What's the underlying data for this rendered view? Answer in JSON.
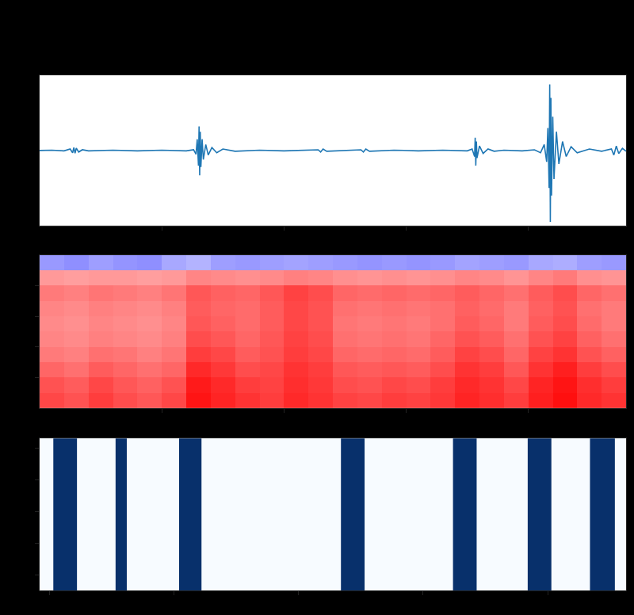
{
  "chart_data": [
    {
      "type": "line",
      "x": [
        0,
        0.1,
        0.2,
        0.25,
        0.27,
        0.28,
        0.29,
        0.3,
        0.32,
        0.35,
        0.4,
        0.6,
        0.8,
        1.0,
        1.2,
        1.26,
        1.28,
        1.29,
        1.3,
        1.305,
        1.31,
        1.315,
        1.32,
        1.33,
        1.34,
        1.36,
        1.38,
        1.41,
        1.45,
        1.5,
        1.6,
        1.8,
        2.0,
        2.2,
        2.28,
        2.3,
        2.32,
        2.35,
        2.5,
        2.63,
        2.65,
        2.67,
        2.7,
        2.9,
        3.1,
        3.3,
        3.5,
        3.54,
        3.56,
        3.565,
        3.57,
        3.575,
        3.58,
        3.6,
        3.63,
        3.67,
        3.72,
        3.8,
        3.95,
        4.05,
        4.1,
        4.13,
        4.15,
        4.16,
        4.17,
        4.175,
        4.18,
        4.185,
        4.19,
        4.2,
        4.21,
        4.23,
        4.25,
        4.28,
        4.31,
        4.35,
        4.4,
        4.5,
        4.6,
        4.68,
        4.7,
        4.72,
        4.74,
        4.77,
        4.8
      ],
      "values": [
        0,
        0.005,
        -0.005,
        0.02,
        -0.03,
        0.04,
        -0.035,
        0.03,
        -0.02,
        0.01,
        -0.005,
        0.005,
        -0.005,
        0.005,
        -0.005,
        0.01,
        -0.05,
        0.15,
        -0.2,
        0.32,
        -0.33,
        0.25,
        -0.22,
        0.15,
        -0.12,
        0.08,
        -0.06,
        0.04,
        -0.03,
        0.02,
        -0.01,
        0.005,
        -0.005,
        0.005,
        0.01,
        -0.02,
        0.02,
        -0.01,
        0.005,
        0.01,
        -0.02,
        0.02,
        -0.01,
        0.005,
        -0.005,
        0.005,
        -0.005,
        0.02,
        -0.08,
        0.17,
        -0.2,
        0.12,
        -0.1,
        0.06,
        -0.04,
        0.02,
        -0.01,
        0.005,
        -0.005,
        0.01,
        -0.03,
        0.08,
        -0.15,
        0.3,
        -0.5,
        0.88,
        -0.95,
        0.7,
        -0.6,
        0.45,
        -0.38,
        0.25,
        -0.18,
        0.12,
        -0.08,
        0.05,
        -0.03,
        0.02,
        -0.01,
        0.02,
        -0.06,
        0.06,
        -0.04,
        0.03,
        -0.01
      ],
      "color": "#1f77b4",
      "xlim": [
        0,
        4.8
      ],
      "xticks": [
        1,
        2,
        3,
        4
      ],
      "ylim": [
        -1,
        1
      ],
      "yticks": [],
      "tick_labels": false
    },
    {
      "type": "heatmap",
      "x": [
        0.1,
        0.3,
        0.5,
        0.7,
        0.9,
        1.1,
        1.3,
        1.5,
        1.7,
        1.9,
        2.1,
        2.3,
        2.5,
        2.7,
        2.9,
        3.1,
        3.3,
        3.5,
        3.7,
        3.9,
        4.1,
        4.3,
        4.5,
        4.7
      ],
      "y": [
        0.25,
        0.75,
        1.25,
        1.75,
        2.25,
        2.75,
        3.25,
        3.75,
        4.25,
        4.75
      ],
      "cells": [
        [
          0.86,
          0.84,
          0.88,
          0.85,
          0.83,
          0.86,
          0.96,
          0.93,
          0.9,
          0.88,
          0.92,
          0.9,
          0.87,
          0.86,
          0.88,
          0.87,
          0.89,
          0.93,
          0.91,
          0.88,
          0.94,
          0.97,
          0.92,
          0.9
        ],
        [
          0.84,
          0.82,
          0.86,
          0.83,
          0.81,
          0.84,
          0.95,
          0.92,
          0.88,
          0.87,
          0.91,
          0.89,
          0.85,
          0.84,
          0.86,
          0.85,
          0.88,
          0.92,
          0.9,
          0.86,
          0.93,
          0.96,
          0.91,
          0.88
        ],
        [
          0.8,
          0.78,
          0.82,
          0.8,
          0.78,
          0.8,
          0.92,
          0.89,
          0.85,
          0.86,
          0.9,
          0.88,
          0.83,
          0.82,
          0.83,
          0.82,
          0.85,
          0.9,
          0.88,
          0.83,
          0.9,
          0.94,
          0.88,
          0.85
        ],
        [
          0.76,
          0.75,
          0.78,
          0.77,
          0.75,
          0.77,
          0.88,
          0.86,
          0.82,
          0.84,
          0.88,
          0.86,
          0.8,
          0.79,
          0.8,
          0.79,
          0.82,
          0.87,
          0.85,
          0.8,
          0.87,
          0.9,
          0.84,
          0.81
        ],
        [
          0.74,
          0.73,
          0.75,
          0.74,
          0.73,
          0.75,
          0.85,
          0.83,
          0.8,
          0.83,
          0.87,
          0.85,
          0.78,
          0.77,
          0.78,
          0.77,
          0.8,
          0.84,
          0.82,
          0.78,
          0.84,
          0.87,
          0.81,
          0.78
        ],
        [
          0.73,
          0.72,
          0.74,
          0.73,
          0.72,
          0.74,
          0.83,
          0.81,
          0.79,
          0.82,
          0.86,
          0.84,
          0.77,
          0.76,
          0.77,
          0.76,
          0.78,
          0.82,
          0.8,
          0.76,
          0.82,
          0.85,
          0.79,
          0.76
        ],
        [
          0.74,
          0.73,
          0.75,
          0.74,
          0.73,
          0.75,
          0.82,
          0.8,
          0.79,
          0.82,
          0.86,
          0.84,
          0.78,
          0.77,
          0.78,
          0.77,
          0.78,
          0.81,
          0.79,
          0.76,
          0.81,
          0.84,
          0.78,
          0.76
        ],
        [
          0.76,
          0.75,
          0.77,
          0.76,
          0.75,
          0.77,
          0.83,
          0.81,
          0.8,
          0.83,
          0.87,
          0.85,
          0.8,
          0.79,
          0.8,
          0.79,
          0.8,
          0.82,
          0.8,
          0.78,
          0.82,
          0.85,
          0.8,
          0.78
        ],
        [
          0.7,
          0.69,
          0.7,
          0.7,
          0.69,
          0.7,
          0.74,
          0.73,
          0.72,
          0.73,
          0.75,
          0.74,
          0.72,
          0.71,
          0.72,
          0.71,
          0.72,
          0.74,
          0.73,
          0.71,
          0.74,
          0.76,
          0.72,
          0.71
        ],
        [
          0.3,
          0.28,
          0.31,
          0.29,
          0.28,
          0.33,
          0.35,
          0.31,
          0.3,
          0.31,
          0.32,
          0.31,
          0.3,
          0.29,
          0.3,
          0.29,
          0.3,
          0.32,
          0.31,
          0.3,
          0.33,
          0.34,
          0.31,
          0.3
        ]
      ],
      "zlim": [
        0,
        1
      ],
      "xlim": [
        0,
        4.8
      ],
      "xticks": [
        1,
        2,
        3,
        4
      ],
      "ylim": [
        0,
        5
      ],
      "yticks": [
        1,
        2,
        3,
        4
      ],
      "tick_labels": false
    },
    {
      "type": "intervals",
      "starts": [
        0.03,
        0.53,
        1.04,
        2.34,
        3.24,
        3.84,
        4.34
      ],
      "ends": [
        0.22,
        0.62,
        1.22,
        2.53,
        3.43,
        4.03,
        4.54
      ],
      "color": "#08306b",
      "xlim": [
        -0.08,
        4.63
      ],
      "xticks": [
        0,
        1,
        2,
        3,
        4
      ],
      "ylim": [
        -0.5,
        4.3
      ],
      "yticks": [
        0,
        1,
        2,
        3,
        4
      ],
      "tick_labels": false
    }
  ]
}
